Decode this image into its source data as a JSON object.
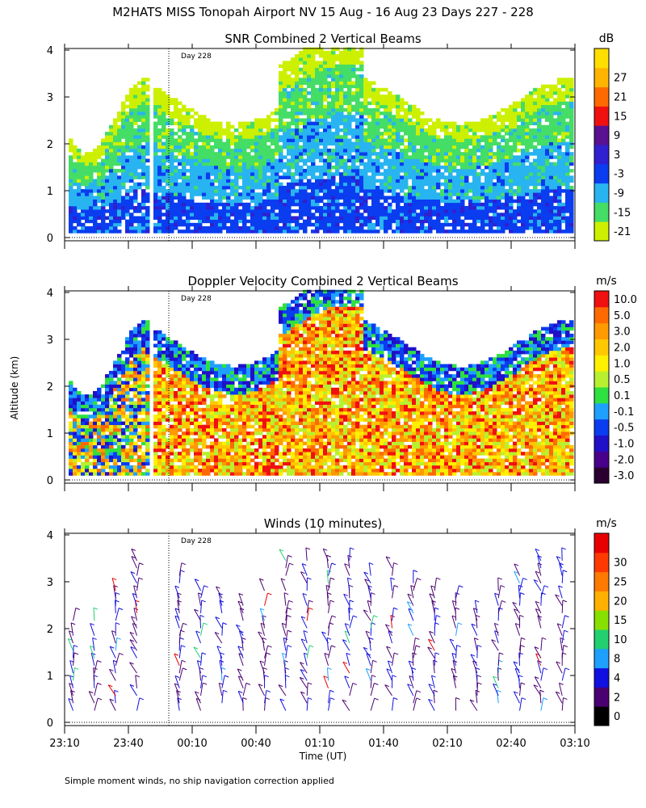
{
  "title": "M2HATS MISS Tonopah Airport NV  15 Aug - 16 Aug 23 Days 227 - 228",
  "ylabel": "Altitude (km)",
  "xlabel": "Time (UT)",
  "footnote": "Simple moment winds, no ship navigation correction applied",
  "chart_data": [
    {
      "type": "heatmap",
      "title": "SNR Combined 2 Vertical Beams",
      "ylabel": "Altitude (km)",
      "ylim": [
        0,
        4
      ],
      "yticks": [
        "0",
        "1",
        "2",
        "3",
        "4"
      ],
      "xlim": [
        "23:10",
        "03:10"
      ],
      "day_marker": {
        "label": "Day 228",
        "time": "23:59"
      },
      "colorbar": {
        "unit": "dB",
        "levels": [
          "-21",
          "-15",
          "-9",
          "-3",
          "3",
          "9",
          "15",
          "21",
          "27"
        ],
        "colors": [
          "#ccf000",
          "#44dd66",
          "#28b4f0",
          "#0a3cf0",
          "#3020d0",
          "#5a1090",
          "#f01010",
          "#ff6a00",
          "#ffb400",
          "#ffde00"
        ]
      }
    },
    {
      "type": "heatmap",
      "title": "Doppler Velocity Combined 2 Vertical Beams",
      "ylabel": "Altitude (km)",
      "ylim": [
        0,
        4
      ],
      "yticks": [
        "0",
        "1",
        "2",
        "3",
        "4"
      ],
      "xlim": [
        "23:10",
        "03:10"
      ],
      "day_marker": {
        "label": "Day 228",
        "time": "23:59"
      },
      "colorbar": {
        "unit": "m/s",
        "levels": [
          "10.0",
          "5.0",
          "3.0",
          "2.0",
          "1.0",
          "0.5",
          "0.1",
          "-0.1",
          "-0.5",
          "-1.0",
          "-2.0",
          "-3.0"
        ],
        "colors": [
          "#2a0030",
          "#48008a",
          "#2010c8",
          "#0a3cf0",
          "#1ea0ff",
          "#2ee040",
          "#b8f030",
          "#fff000",
          "#ffc800",
          "#ff9a00",
          "#ff6a00",
          "#f01010"
        ]
      }
    },
    {
      "type": "scatter",
      "title": "Winds (10 minutes)",
      "ylabel": "Altitude (km)",
      "ylim": [
        0,
        4
      ],
      "yticks": [
        "0",
        "1",
        "2",
        "3",
        "4"
      ],
      "xlim": [
        "23:10",
        "03:10"
      ],
      "xticks": [
        "23:10",
        "23:40",
        "00:10",
        "00:40",
        "01:10",
        "01:40",
        "02:10",
        "02:40",
        "03:10"
      ],
      "day_marker": {
        "label": "Day 228",
        "time": "23:59"
      },
      "colorbar": {
        "unit": "m/s",
        "levels": [
          "0",
          "2",
          "4",
          "8",
          "10",
          "15",
          "20",
          "25",
          "30"
        ],
        "colors": [
          "#000000",
          "#4a0070",
          "#1010e0",
          "#1ea0ff",
          "#22d070",
          "#88e000",
          "#ffb000",
          "#ff7a00",
          "#ff3a00",
          "#e80000"
        ]
      },
      "profile_times": [
        "23:14",
        "23:24",
        "23:34",
        "23:44",
        "00:04",
        "00:14",
        "00:24",
        "00:34",
        "00:44",
        "00:54",
        "01:04",
        "01:14",
        "01:24",
        "01:34",
        "01:44",
        "01:54",
        "02:04",
        "02:14",
        "02:24",
        "02:34",
        "02:44",
        "02:54",
        "03:04"
      ]
    }
  ]
}
